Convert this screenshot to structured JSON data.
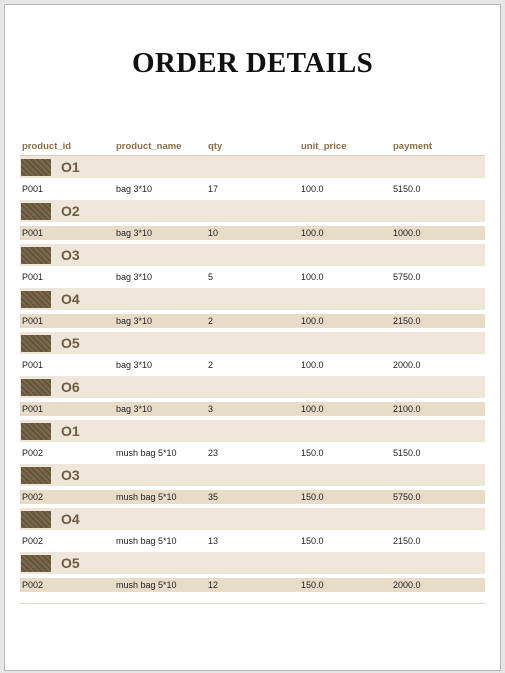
{
  "title": "ORDER DETAILS",
  "columns": [
    "product_id",
    "product_name",
    "qty",
    "unit_price",
    "payment"
  ],
  "groups": [
    {
      "label": "O1",
      "row": {
        "product_id": "P001",
        "product_name": "bag 3*10",
        "qty": "17",
        "unit_price": "100.0",
        "payment": "5150.0"
      }
    },
    {
      "label": "O2",
      "row": {
        "product_id": "P001",
        "product_name": "bag 3*10",
        "qty": "10",
        "unit_price": "100.0",
        "payment": "1000.0"
      }
    },
    {
      "label": "O3",
      "row": {
        "product_id": "P001",
        "product_name": "bag 3*10",
        "qty": "5",
        "unit_price": "100.0",
        "payment": "5750.0"
      }
    },
    {
      "label": "O4",
      "row": {
        "product_id": "P001",
        "product_name": "bag 3*10",
        "qty": "2",
        "unit_price": "100.0",
        "payment": "2150.0"
      }
    },
    {
      "label": "O5",
      "row": {
        "product_id": "P001",
        "product_name": "bag 3*10",
        "qty": "2",
        "unit_price": "100.0",
        "payment": "2000.0"
      }
    },
    {
      "label": "O6",
      "row": {
        "product_id": "P001",
        "product_name": "bag 3*10",
        "qty": "3",
        "unit_price": "100.0",
        "payment": "2100.0"
      }
    },
    {
      "label": "O1",
      "row": {
        "product_id": "P002",
        "product_name": "mush bag 5*10",
        "qty": "23",
        "unit_price": "150.0",
        "payment": "5150.0"
      }
    },
    {
      "label": "O3",
      "row": {
        "product_id": "P002",
        "product_name": "mush bag 5*10",
        "qty": "35",
        "unit_price": "150.0",
        "payment": "5750.0"
      }
    },
    {
      "label": "O4",
      "row": {
        "product_id": "P002",
        "product_name": "mush bag 5*10",
        "qty": "13",
        "unit_price": "150.0",
        "payment": "2150.0"
      }
    },
    {
      "label": "O5",
      "row": {
        "product_id": "P002",
        "product_name": "mush bag 5*10",
        "qty": "12",
        "unit_price": "150.0",
        "payment": "2000.0"
      }
    }
  ]
}
